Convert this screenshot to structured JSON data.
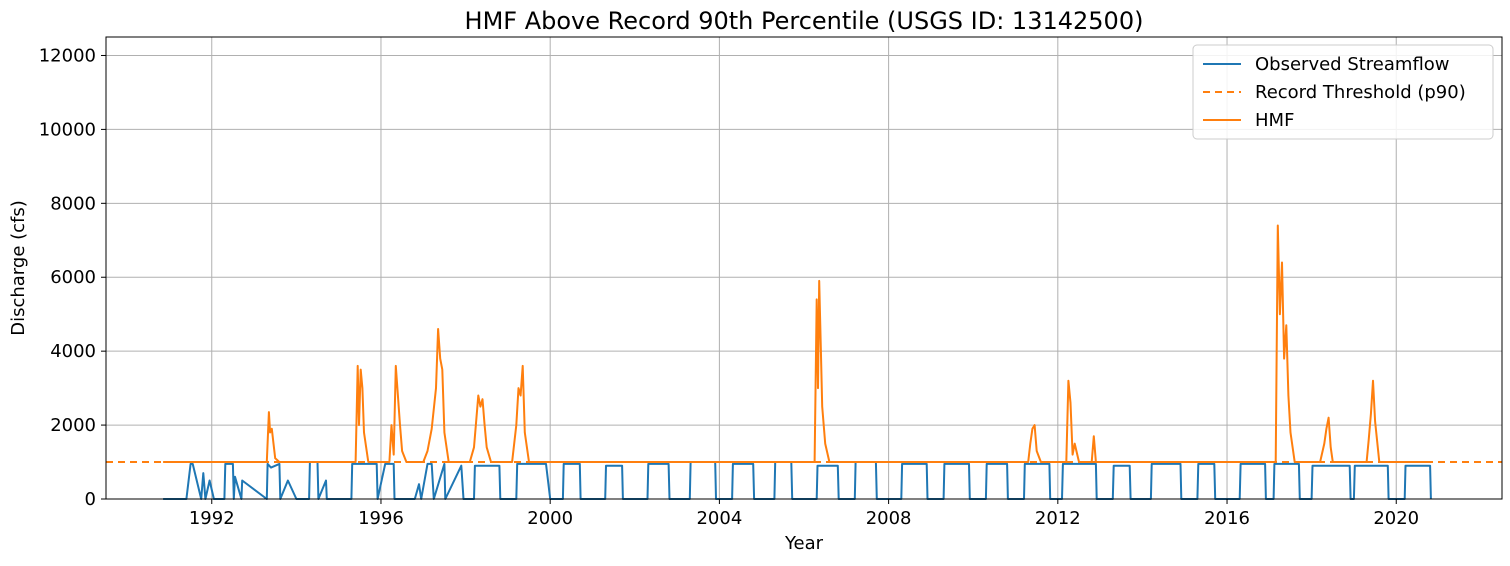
{
  "chart_data": {
    "type": "line",
    "title": "HMF Above Record 90th Percentile (USGS ID: 13142500)",
    "xlabel": "Year",
    "ylabel": "Discharge (cfs)",
    "xlim": [
      1989.5,
      2022.5
    ],
    "ylim": [
      0,
      12500
    ],
    "x_ticks": [
      1992,
      1996,
      2000,
      2004,
      2008,
      2012,
      2016,
      2020
    ],
    "y_ticks": [
      0,
      2000,
      4000,
      6000,
      8000,
      10000,
      12000
    ],
    "grid": true,
    "legend_position": "top-right",
    "threshold": 1000,
    "colors": {
      "observed": "#1f77b4",
      "threshold": "#ff7f0e",
      "hmf": "#ff7f0e",
      "grid": "#b0b0b0"
    },
    "series": [
      {
        "name": "Observed Streamflow",
        "style": "solid",
        "x": [
          1990.85,
          1991.4,
          1991.5,
          1991.55,
          1991.75,
          1991.8,
          1991.85,
          1991.95,
          1992.05,
          1992.3,
          1992.32,
          1992.5,
          1992.52,
          1992.55,
          1992.7,
          1992.72,
          1993.3,
          1993.32,
          1993.4,
          1993.6,
          1993.62,
          1993.8,
          1994.0,
          1994.3,
          1994.32,
          1994.5,
          1994.52,
          1994.7,
          1994.72,
          1994.8,
          1995.3,
          1995.32,
          1995.9,
          1995.92,
          1996.1,
          1996.3,
          1996.32,
          1996.8,
          1996.9,
          1996.95,
          1997.1,
          1997.2,
          1997.25,
          1997.5,
          1997.52,
          1997.9,
          1997.95,
          1998.2,
          1998.22,
          1998.8,
          1998.82,
          1999.2,
          1999.22,
          1999.9,
          2000.0,
          2000.3,
          2000.32,
          2000.7,
          2000.72,
          2001.3,
          2001.32,
          2001.7,
          2001.72,
          2002.3,
          2002.32,
          2002.8,
          2002.82,
          2003.3,
          2003.32,
          2003.9,
          2003.92,
          2004.3,
          2004.32,
          2004.8,
          2004.82,
          2005.3,
          2005.32,
          2005.7,
          2005.72,
          2006.3,
          2006.32,
          2006.8,
          2006.82,
          2007.2,
          2007.22,
          2007.7,
          2007.72,
          2008.3,
          2008.32,
          2008.9,
          2008.92,
          2009.3,
          2009.32,
          2009.9,
          2009.92,
          2010.3,
          2010.32,
          2010.8,
          2010.82,
          2011.2,
          2011.22,
          2011.8,
          2011.82,
          2012.1,
          2012.12,
          2012.9,
          2012.92,
          2013.3,
          2013.32,
          2013.7,
          2013.72,
          2014.2,
          2014.22,
          2014.9,
          2014.92,
          2015.3,
          2015.32,
          2015.7,
          2015.72,
          2016.3,
          2016.32,
          2016.9,
          2016.92,
          2017.1,
          2017.12,
          2017.7,
          2017.72,
          2018.0,
          2018.02,
          2018.9,
          2018.92,
          2019.0,
          2019.02,
          2019.8,
          2019.82,
          2020.2,
          2020.22,
          2020.8,
          2020.82
        ],
        "values": [
          0,
          0,
          950,
          950,
          0,
          700,
          0,
          500,
          0,
          0,
          950,
          950,
          0,
          600,
          0,
          500,
          0,
          950,
          850,
          950,
          0,
          500,
          0,
          0,
          1000,
          1000,
          0,
          500,
          0,
          0,
          0,
          950,
          950,
          0,
          950,
          950,
          0,
          0,
          400,
          0,
          950,
          950,
          0,
          950,
          0,
          900,
          0,
          0,
          900,
          900,
          0,
          0,
          950,
          950,
          0,
          0,
          950,
          950,
          0,
          0,
          900,
          900,
          0,
          0,
          950,
          950,
          0,
          0,
          1000,
          1000,
          0,
          0,
          950,
          950,
          0,
          0,
          1000,
          1000,
          0,
          0,
          900,
          900,
          0,
          0,
          1000,
          1000,
          0,
          0,
          950,
          950,
          0,
          0,
          950,
          950,
          0,
          0,
          950,
          950,
          0,
          0,
          950,
          950,
          0,
          0,
          950,
          950,
          0,
          0,
          900,
          900,
          0,
          0,
          950,
          950,
          0,
          0,
          950,
          950,
          0,
          0,
          950,
          950,
          0,
          0,
          950,
          950,
          0,
          0,
          900,
          900,
          0,
          0,
          900,
          900,
          0,
          0,
          900,
          900,
          0
        ]
      },
      {
        "name": "Record Threshold (p90)",
        "style": "dashed",
        "x": [
          1989.5,
          2022.5
        ],
        "values": [
          1000,
          1000
        ]
      },
      {
        "name": "HMF",
        "style": "solid",
        "x": [
          1990.85,
          1993.3,
          1993.35,
          1993.38,
          1993.42,
          1993.46,
          1993.5,
          1993.6,
          1995.4,
          1995.45,
          1995.48,
          1995.52,
          1995.56,
          1995.6,
          1995.7,
          1996.2,
          1996.25,
          1996.3,
          1996.35,
          1996.4,
          1996.45,
          1996.5,
          1996.6,
          1997.0,
          1997.1,
          1997.2,
          1997.3,
          1997.35,
          1997.4,
          1997.45,
          1997.5,
          1997.6,
          1998.1,
          1998.2,
          1998.3,
          1998.35,
          1998.4,
          1998.45,
          1998.5,
          1998.6,
          1999.1,
          1999.2,
          1999.25,
          1999.3,
          1999.35,
          1999.4,
          1999.5,
          2006.25,
          2006.3,
          2006.33,
          2006.36,
          2006.4,
          2006.43,
          2006.5,
          2006.6,
          2011.3,
          2011.35,
          2011.4,
          2011.45,
          2011.5,
          2011.6,
          2012.2,
          2012.25,
          2012.3,
          2012.35,
          2012.4,
          2012.5,
          2012.8,
          2012.85,
          2012.9,
          2017.15,
          2017.2,
          2017.25,
          2017.3,
          2017.35,
          2017.4,
          2017.45,
          2017.5,
          2017.6,
          2018.2,
          2018.3,
          2018.35,
          2018.4,
          2018.45,
          2018.5,
          2019.3,
          2019.35,
          2019.4,
          2019.45,
          2019.5,
          2019.6,
          2020.8
        ],
        "values": [
          1000,
          1000,
          2350,
          1800,
          1900,
          1500,
          1100,
          1000,
          1000,
          3600,
          2000,
          3500,
          3000,
          1800,
          1000,
          1000,
          2000,
          1200,
          3600,
          2800,
          2000,
          1300,
          1000,
          1000,
          1300,
          1900,
          3000,
          4600,
          3800,
          3500,
          1800,
          1000,
          1000,
          1400,
          2800,
          2500,
          2700,
          2000,
          1400,
          1000,
          1000,
          2000,
          3000,
          2800,
          3600,
          1800,
          1000,
          1000,
          5400,
          3000,
          5900,
          4000,
          2500,
          1500,
          1000,
          1000,
          1500,
          1900,
          2000,
          1300,
          1000,
          1000,
          3200,
          2600,
          1200,
          1500,
          1000,
          1000,
          1700,
          1000,
          1000,
          7400,
          5000,
          6400,
          3800,
          4700,
          2800,
          1800,
          1000,
          1000,
          1500,
          1900,
          2200,
          1400,
          1000,
          1000,
          1600,
          2300,
          3200,
          2100,
          1000,
          1000
        ]
      }
    ]
  }
}
